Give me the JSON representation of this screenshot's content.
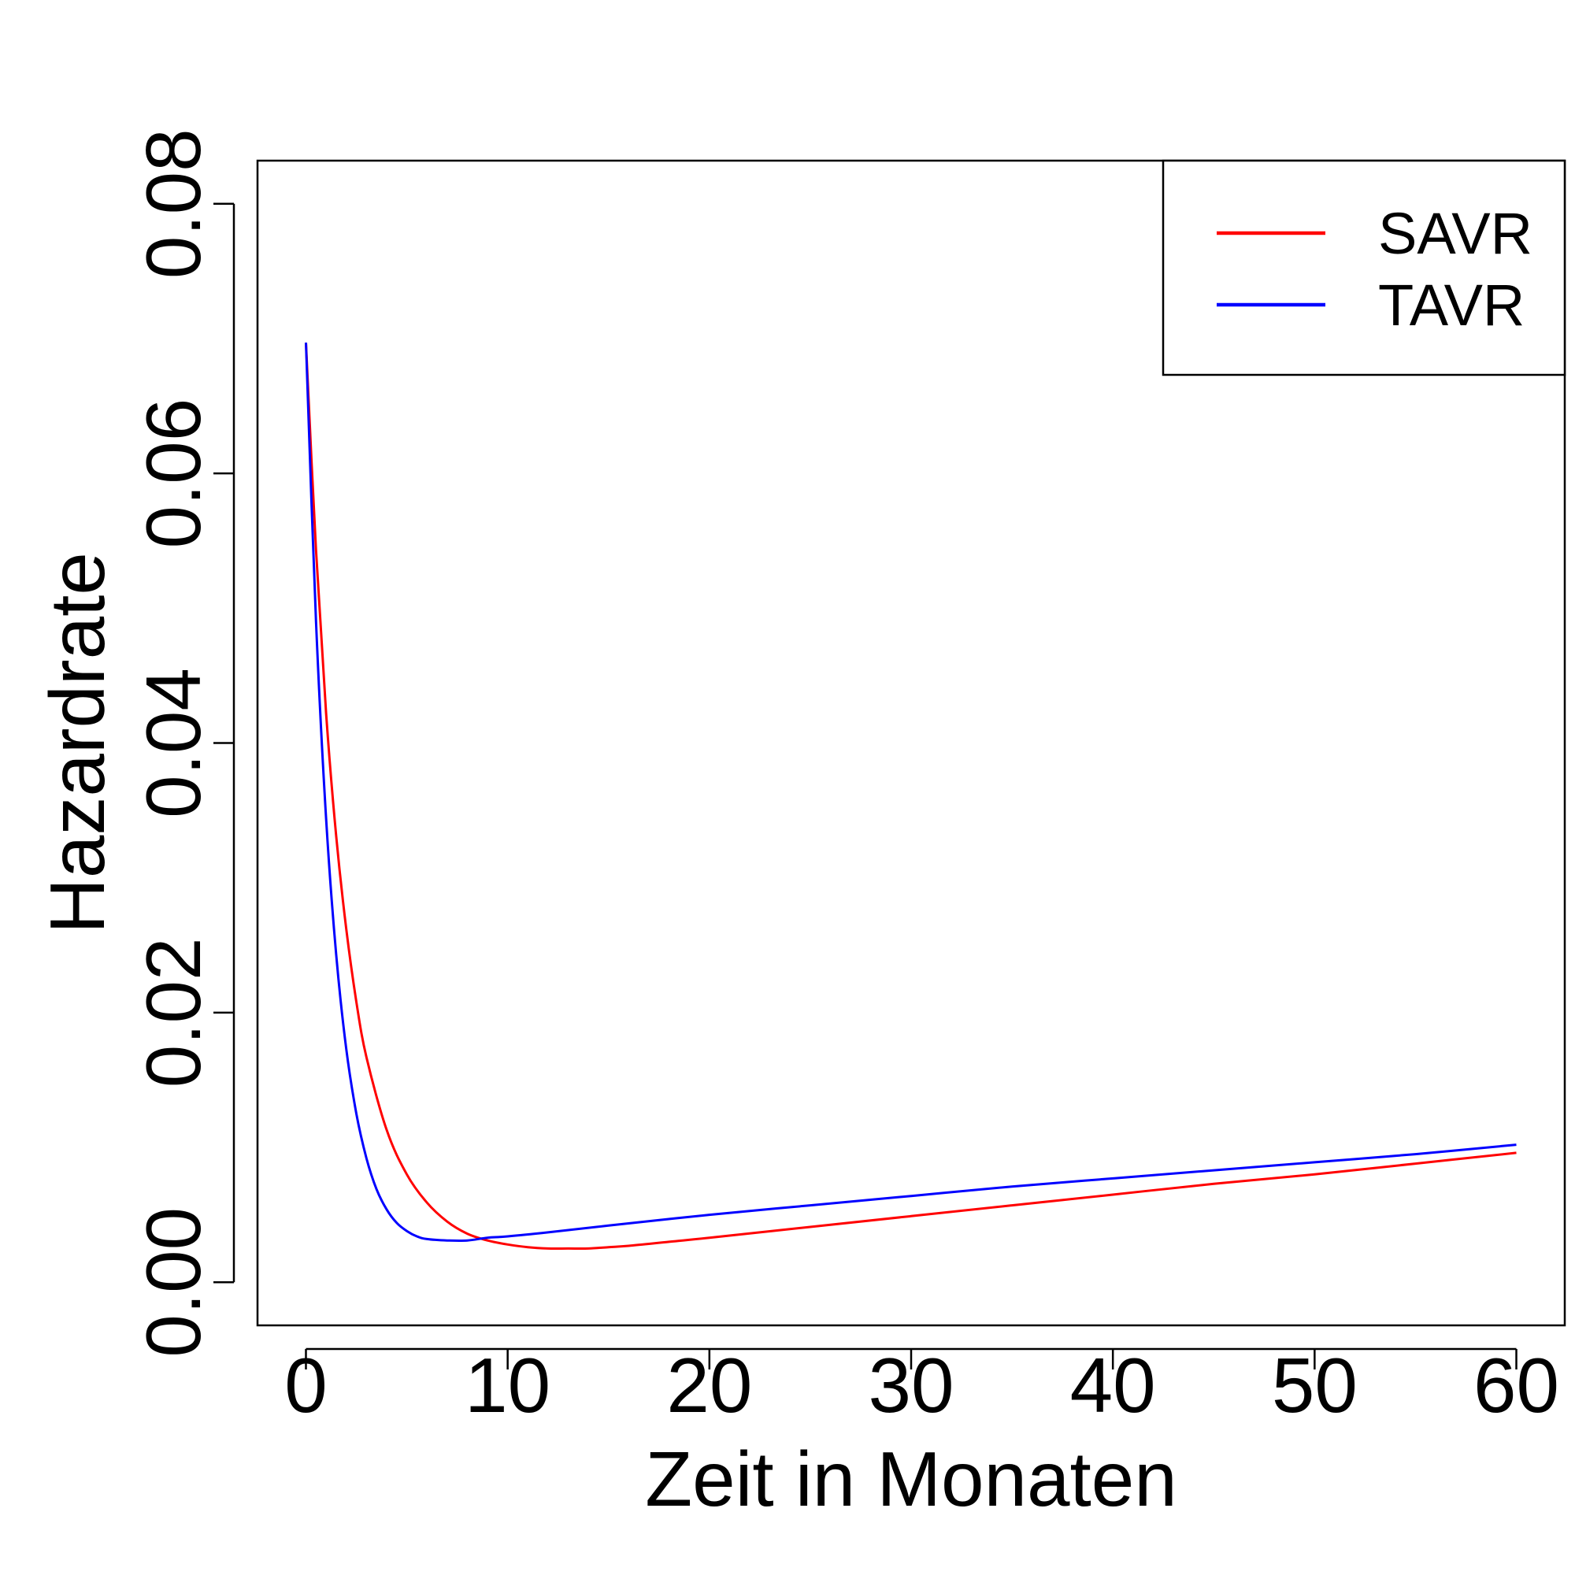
{
  "chart_data": {
    "type": "line",
    "title": "",
    "xlabel": "Zeit in Monaten",
    "ylabel": "Hazardrate",
    "xlim": [
      -2.4,
      62.4
    ],
    "ylim": [
      -0.0032,
      0.0832
    ],
    "x_ticks": [
      0,
      10,
      20,
      30,
      40,
      50,
      60
    ],
    "x_tick_labels": [
      "0",
      "10",
      "20",
      "30",
      "40",
      "50",
      "60"
    ],
    "y_ticks": [
      0.0,
      0.02,
      0.04,
      0.06,
      0.08
    ],
    "y_tick_labels": [
      "0.00",
      "0.02",
      "0.04",
      "0.06",
      "0.08"
    ],
    "grid": false,
    "legend_position": "top-right",
    "series": [
      {
        "name": "SAVR",
        "color": "#ff0000",
        "x": [
          0,
          0.5,
          1,
          1.5,
          2,
          2.5,
          3,
          4,
          5,
          6,
          7,
          8,
          9,
          10,
          11,
          12,
          13,
          14,
          15,
          16,
          18,
          20,
          25,
          30,
          35,
          40,
          45,
          50,
          55,
          60
        ],
        "y": [
          0.0697,
          0.0543,
          0.0422,
          0.0331,
          0.0262,
          0.0208,
          0.0167,
          0.0113,
          0.008,
          0.0059,
          0.0045,
          0.0036,
          0.0031,
          0.0028,
          0.0026,
          0.0025,
          0.0025,
          0.0025,
          0.0026,
          0.0027,
          0.003,
          0.0033,
          0.0041,
          0.0049,
          0.0057,
          0.0065,
          0.0073,
          0.008,
          0.0088,
          0.0096
        ]
      },
      {
        "name": "TAVR",
        "color": "#0000ff",
        "x": [
          0,
          0.5,
          1,
          1.5,
          2,
          2.5,
          3,
          3.5,
          4,
          4.5,
          5,
          5.5,
          6,
          7,
          8,
          9,
          10,
          12,
          15,
          20,
          25,
          30,
          35,
          40,
          45,
          50,
          55,
          60
        ],
        "y": [
          0.0697,
          0.049,
          0.0344,
          0.0243,
          0.0173,
          0.0125,
          0.0092,
          0.0069,
          0.0054,
          0.0044,
          0.0038,
          0.0034,
          0.0032,
          0.0031,
          0.0031,
          0.0033,
          0.0034,
          0.0037,
          0.0042,
          0.005,
          0.0057,
          0.0064,
          0.0071,
          0.0077,
          0.0083,
          0.0089,
          0.0095,
          0.0102
        ]
      }
    ]
  }
}
